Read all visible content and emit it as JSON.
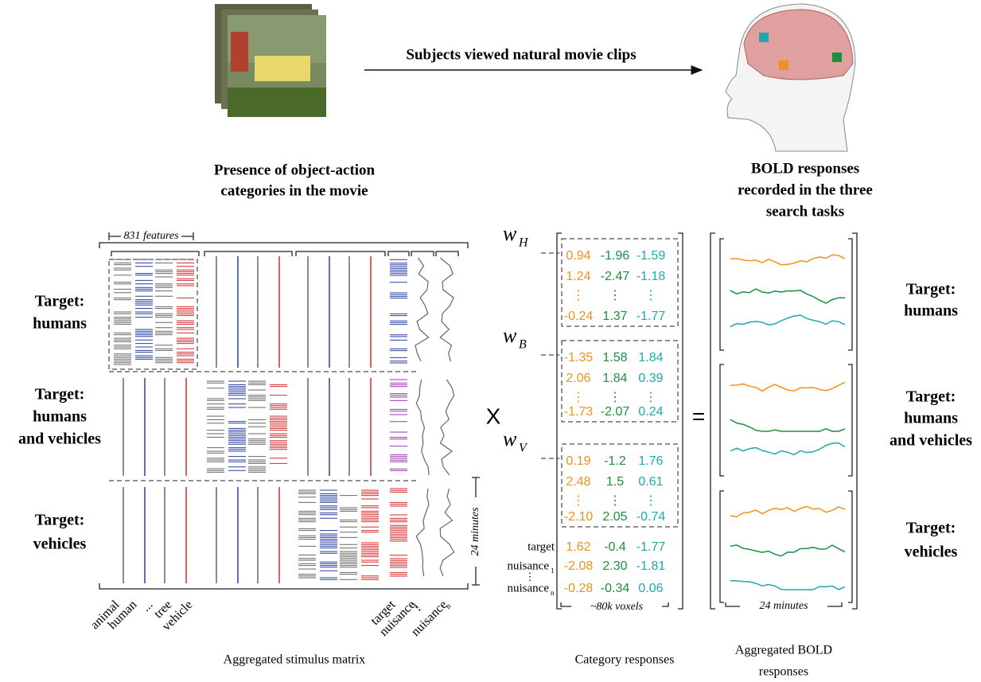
{
  "top": {
    "arrow_label": "Subjects viewed natural movie clips",
    "left_heading": [
      "Presence of object-action",
      "categories in the movie"
    ],
    "right_heading": [
      "BOLD responses",
      "recorded in the three",
      "search tasks"
    ]
  },
  "tasks": [
    [
      "Target:",
      "humans"
    ],
    [
      "Target:",
      "humans",
      "and vehicles"
    ],
    [
      "Target:",
      "vehicles"
    ]
  ],
  "stimulus": {
    "features_label": "831 features",
    "duration_label": "24 minutes",
    "caption": "Aggregated stimulus matrix",
    "column_labels": [
      {
        "text": "animal"
      },
      {
        "text": "human"
      },
      {
        "text": "..."
      },
      {
        "text": "tree"
      },
      {
        "text": "vehicle"
      },
      {
        "text": "target"
      },
      {
        "text": "nuisance",
        "sub": "1"
      },
      {
        "text": "⋮"
      },
      {
        "text": "nuisance",
        "sub": "n"
      }
    ]
  },
  "operators": {
    "times": "X",
    "equals": "="
  },
  "weights": {
    "dots": "⋮",
    "blocks": [
      {
        "label": "w",
        "sub": "H",
        "rows": [
          [
            "0.94",
            "-1.96",
            "-1.59"
          ],
          [
            "1.24",
            "-2.47",
            "-1.18"
          ],
          [
            "-0.24",
            "1.37",
            "-1.77"
          ]
        ]
      },
      {
        "label": "w",
        "sub": "B",
        "rows": [
          [
            "-1.35",
            "1.58",
            "1.84"
          ],
          [
            "2.06",
            "1.84",
            "0.39"
          ],
          [
            "-1.73",
            "-2.07",
            "0.24"
          ]
        ]
      },
      {
        "label": "w",
        "sub": "V",
        "rows": [
          [
            "0.19",
            "-1.2",
            "1.76"
          ],
          [
            "2.48",
            "1.5",
            "0.61"
          ],
          [
            "-2.10",
            "2.05",
            "-0.74"
          ]
        ]
      }
    ],
    "extra_rows": [
      {
        "label": "target",
        "values": [
          "1.62",
          "-0.4",
          "-1.77"
        ]
      },
      {
        "label": "nuisance",
        "sub": "1",
        "values": [
          "-2.08",
          "2.30",
          "-1.81"
        ]
      },
      {
        "label": "nuisance",
        "sub": "n",
        "values": [
          "-0.28",
          "-0.34",
          "0.06"
        ]
      }
    ],
    "voxels_label": "~80k voxels",
    "caption": "Category responses"
  },
  "bold": {
    "duration_label": "24 minutes",
    "caption": [
      "Aggregated BOLD",
      "responses"
    ]
  }
}
